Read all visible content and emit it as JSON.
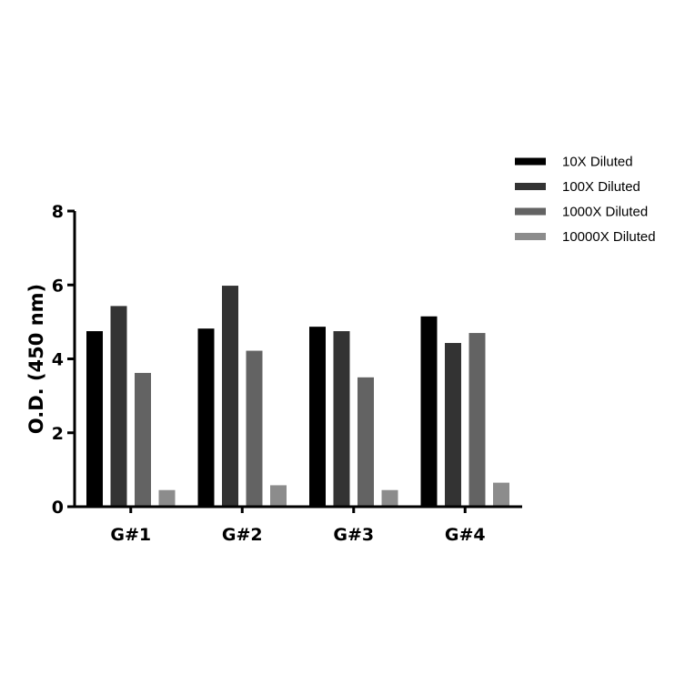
{
  "chart_data": {
    "type": "bar",
    "title": "",
    "xlabel": "",
    "ylabel": "O.D. (450 nm)",
    "ylim": [
      0,
      8
    ],
    "yticks": [
      0,
      2,
      4,
      6,
      8
    ],
    "grid": false,
    "legend_position": "top-right",
    "categories": [
      "G#1",
      "G#2",
      "G#3",
      "G#4"
    ],
    "series": [
      {
        "name": "10X Diluted",
        "color": "#000000",
        "values": [
          4.75,
          4.82,
          4.87,
          5.15
        ]
      },
      {
        "name": "100X Diluted",
        "color": "#333333",
        "values": [
          5.43,
          5.98,
          4.75,
          4.43
        ]
      },
      {
        "name": "1000X Diluted",
        "color": "#636363",
        "values": [
          3.62,
          4.22,
          3.5,
          4.7
        ]
      },
      {
        "name": "10000X Diluted",
        "color": "#8c8c8c",
        "values": [
          0.45,
          0.58,
          0.45,
          0.65
        ]
      }
    ]
  }
}
